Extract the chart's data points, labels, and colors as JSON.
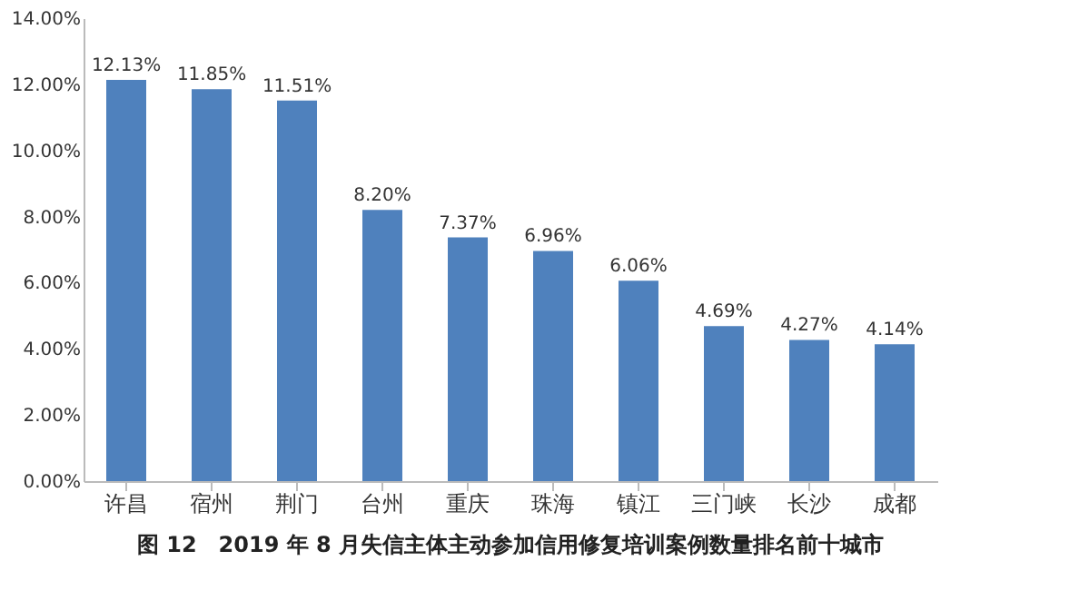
{
  "chart_data": {
    "type": "bar",
    "title": "图 12　2019 年 8 月失信主体主动参加信用修复培训案例数量排名前十城市",
    "categories": [
      "许昌",
      "宿州",
      "荆门",
      "台州",
      "重庆",
      "珠海",
      "镇江",
      "三门峡",
      "长沙",
      "成都"
    ],
    "values": [
      12.13,
      11.85,
      11.51,
      8.2,
      7.37,
      6.96,
      6.06,
      4.69,
      4.27,
      4.14
    ],
    "value_labels": [
      "12.13%",
      "11.85%",
      "11.51%",
      "8.20%",
      "7.37%",
      "6.96%",
      "6.06%",
      "4.69%",
      "4.27%",
      "4.14%"
    ],
    "color": "#4f81bd",
    "ylim": [
      0,
      14
    ],
    "yticks": [
      {
        "value": 0,
        "label": "0.00%"
      },
      {
        "value": 2,
        "label": "2.00%"
      },
      {
        "value": 4,
        "label": "4.00%"
      },
      {
        "value": 6,
        "label": "6.00%"
      },
      {
        "value": 8,
        "label": "8.00%"
      },
      {
        "value": 10,
        "label": "10.00%"
      },
      {
        "value": 12,
        "label": "12.00%"
      },
      {
        "value": 14,
        "label": "14.00%"
      }
    ],
    "grid": false
  }
}
